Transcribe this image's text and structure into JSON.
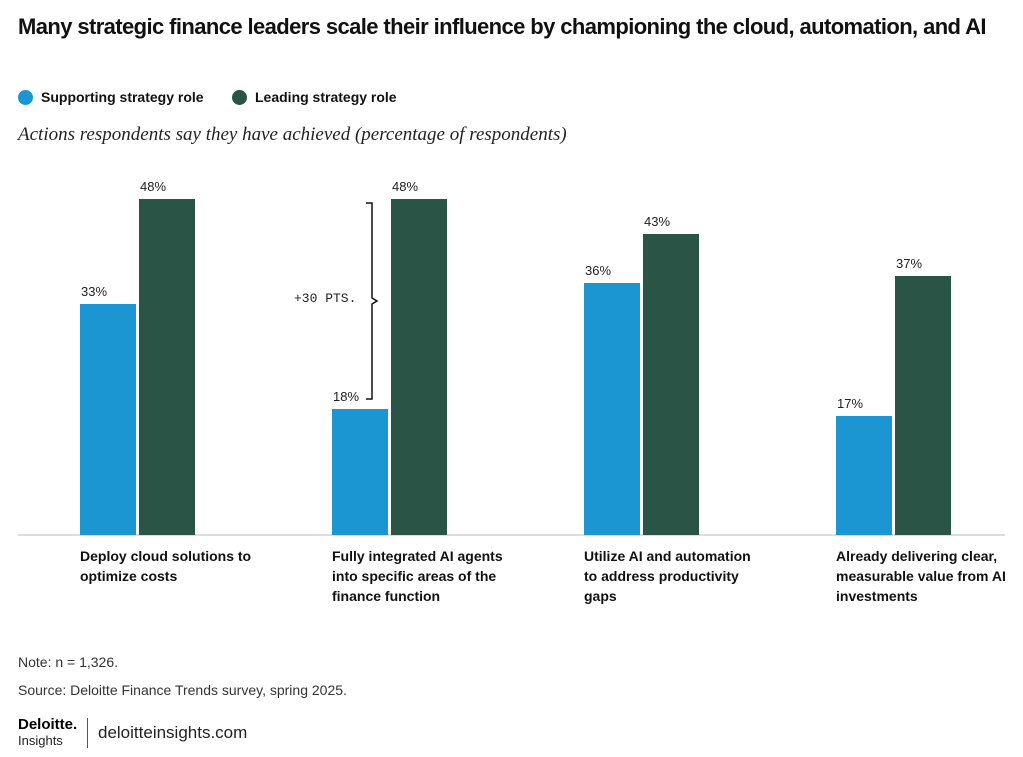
{
  "chart_data": {
    "type": "bar",
    "title": "Many strategic finance leaders scale their influence by championing the cloud, automation, and AI",
    "subtitle": "Actions respondents say they have achieved (percentage of respondents)",
    "categories": [
      "Deploy cloud solutions to optimize costs",
      "Fully integrated AI agents into specific areas of the finance function",
      "Utilize AI and automation to address productivity gaps",
      "Already delivering clear, measurable value from AI investments"
    ],
    "series": [
      {
        "name": "Supporting strategy role",
        "color": "#1b96d3",
        "values": [
          33,
          18,
          36,
          17
        ],
        "value_labels": [
          "33%",
          "18%",
          "36%",
          "17%"
        ]
      },
      {
        "name": "Leading strategy role",
        "color": "#2a5446",
        "values": [
          48,
          48,
          43,
          37
        ],
        "value_labels": [
          "48%",
          "48%",
          "43%",
          "37%"
        ]
      }
    ],
    "annotation": "+30 PTS.",
    "note": "Note: n = 1,326.",
    "source": "Source: Deloitte Finance Trends survey, spring 2025.",
    "brand": "Deloitte.",
    "brand_sub": "Insights",
    "website": "deloitteinsights.com"
  }
}
